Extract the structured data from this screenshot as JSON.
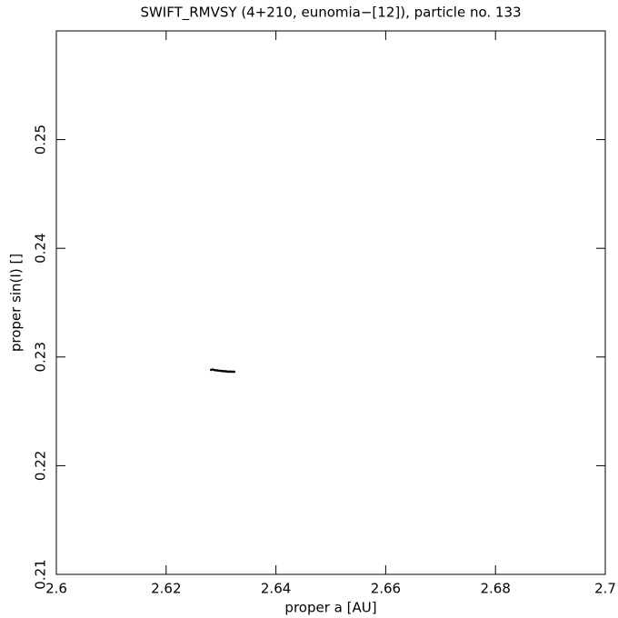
{
  "chart_data": {
    "type": "scatter",
    "title": "SWIFT_RMVSY (4+210, eunomia−[12]), particle no. 133",
    "x_label": "proper a [AU]",
    "y_label": "proper sin(I) []",
    "color": "#000000",
    "x": [
      2.6282,
      2.6285,
      2.6288,
      2.6291,
      2.6294,
      2.6297,
      2.63,
      2.6303,
      2.6306,
      2.6309,
      2.6312,
      2.6315,
      2.6318,
      2.6321,
      2.6324
    ],
    "values": [
      0.22882,
      0.22885,
      0.2288,
      0.22878,
      0.22876,
      0.22874,
      0.22872,
      0.2287,
      0.22869,
      0.22868,
      0.22866,
      0.22865,
      0.22866,
      0.22864,
      0.22865
    ],
    "xlim": [
      2.6,
      2.7
    ],
    "xticks": [
      2.6,
      2.62,
      2.64,
      2.66,
      2.68,
      2.7
    ],
    "ylim": [
      0.21,
      0.26
    ],
    "yticks": [
      0.21,
      0.22,
      0.23,
      0.24,
      0.25
    ]
  }
}
